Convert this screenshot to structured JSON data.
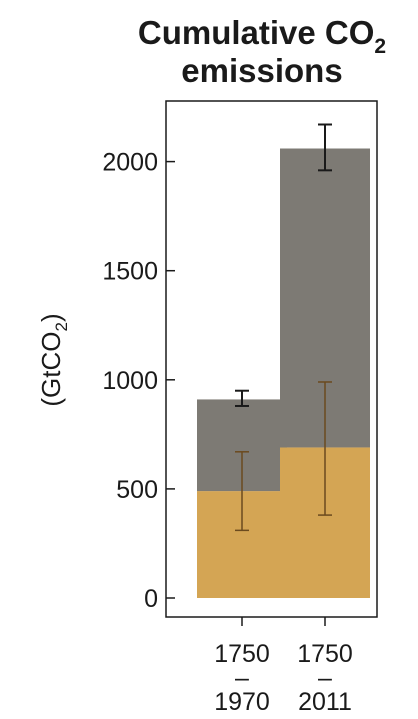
{
  "chart_data": {
    "type": "bar",
    "stacked": true,
    "title": {
      "line1": "Cumulative CO",
      "line1_sub": "2",
      "line2": "emissions"
    },
    "ylabel": {
      "main": "(GtCO",
      "sub": "2",
      "close": ")"
    },
    "ylim": [
      0,
      2250
    ],
    "yticks": [
      0,
      500,
      1000,
      1500,
      2000
    ],
    "categories": [
      {
        "line1": "1750",
        "line2": "–",
        "line3": "1970"
      },
      {
        "line1": "1750",
        "line2": "–",
        "line3": "2011"
      }
    ],
    "series": [
      {
        "color": "#d4a554",
        "values": [
          490,
          690
        ],
        "error_low": [
          310,
          380
        ],
        "error_high": [
          670,
          990
        ]
      },
      {
        "color": "#7d7a74",
        "values": [
          420,
          1370
        ],
        "total_error_low": [
          880,
          1960
        ],
        "total_error_high": [
          950,
          2170
        ]
      }
    ],
    "grid": false,
    "legend": "none"
  }
}
